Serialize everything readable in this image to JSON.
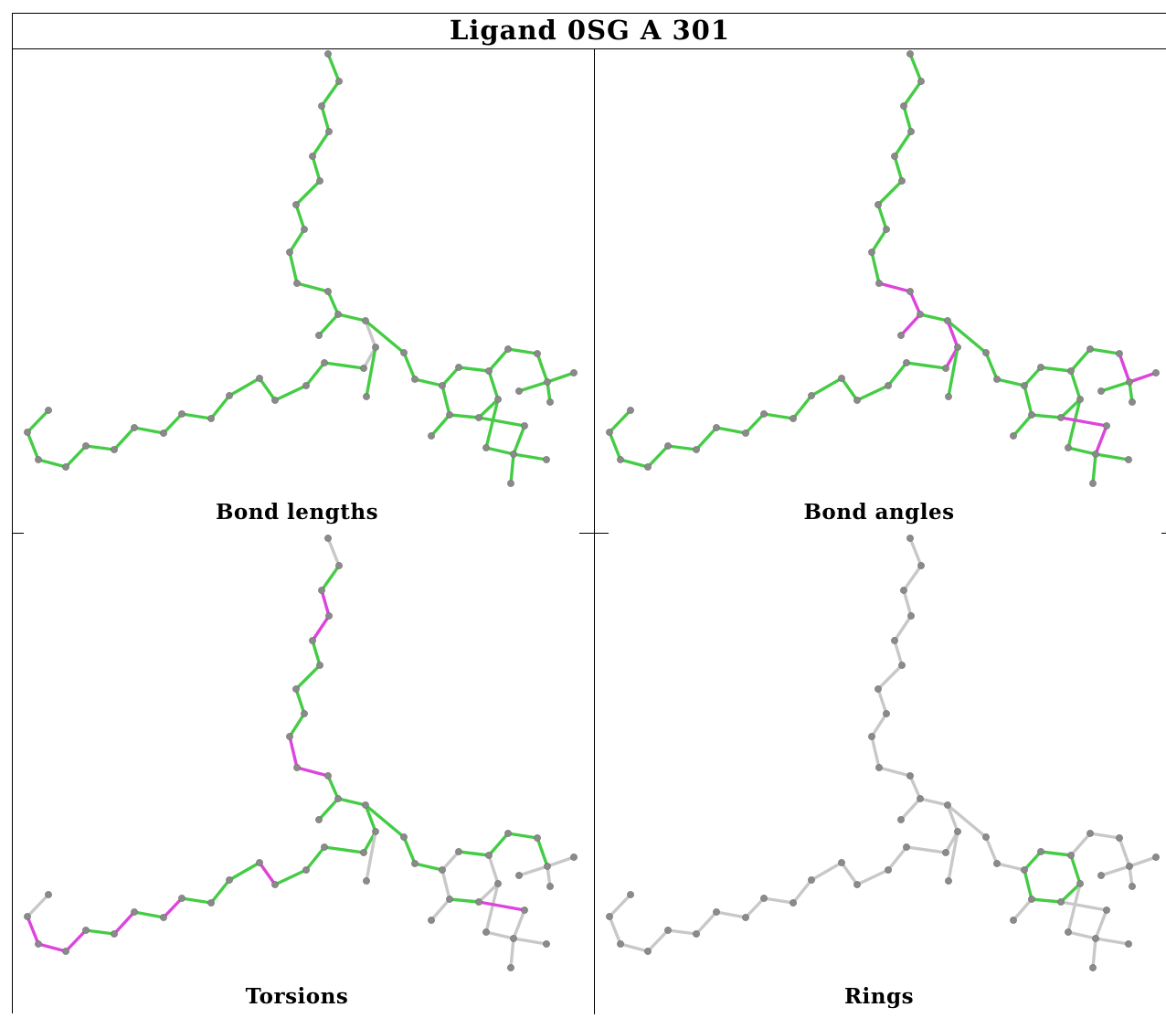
{
  "title": "Ligand 0SG A 301",
  "panels": [
    {
      "caption": "Bond lengths"
    },
    {
      "caption": "Bond angles"
    },
    {
      "caption": "Torsions"
    },
    {
      "caption": "Rings"
    }
  ],
  "colors": {
    "ok_bond": "#44cc44",
    "outlier_bond": "#dd44dd",
    "neutral_bond": "#c8c8c8",
    "atom": "#8a8a8a"
  }
}
